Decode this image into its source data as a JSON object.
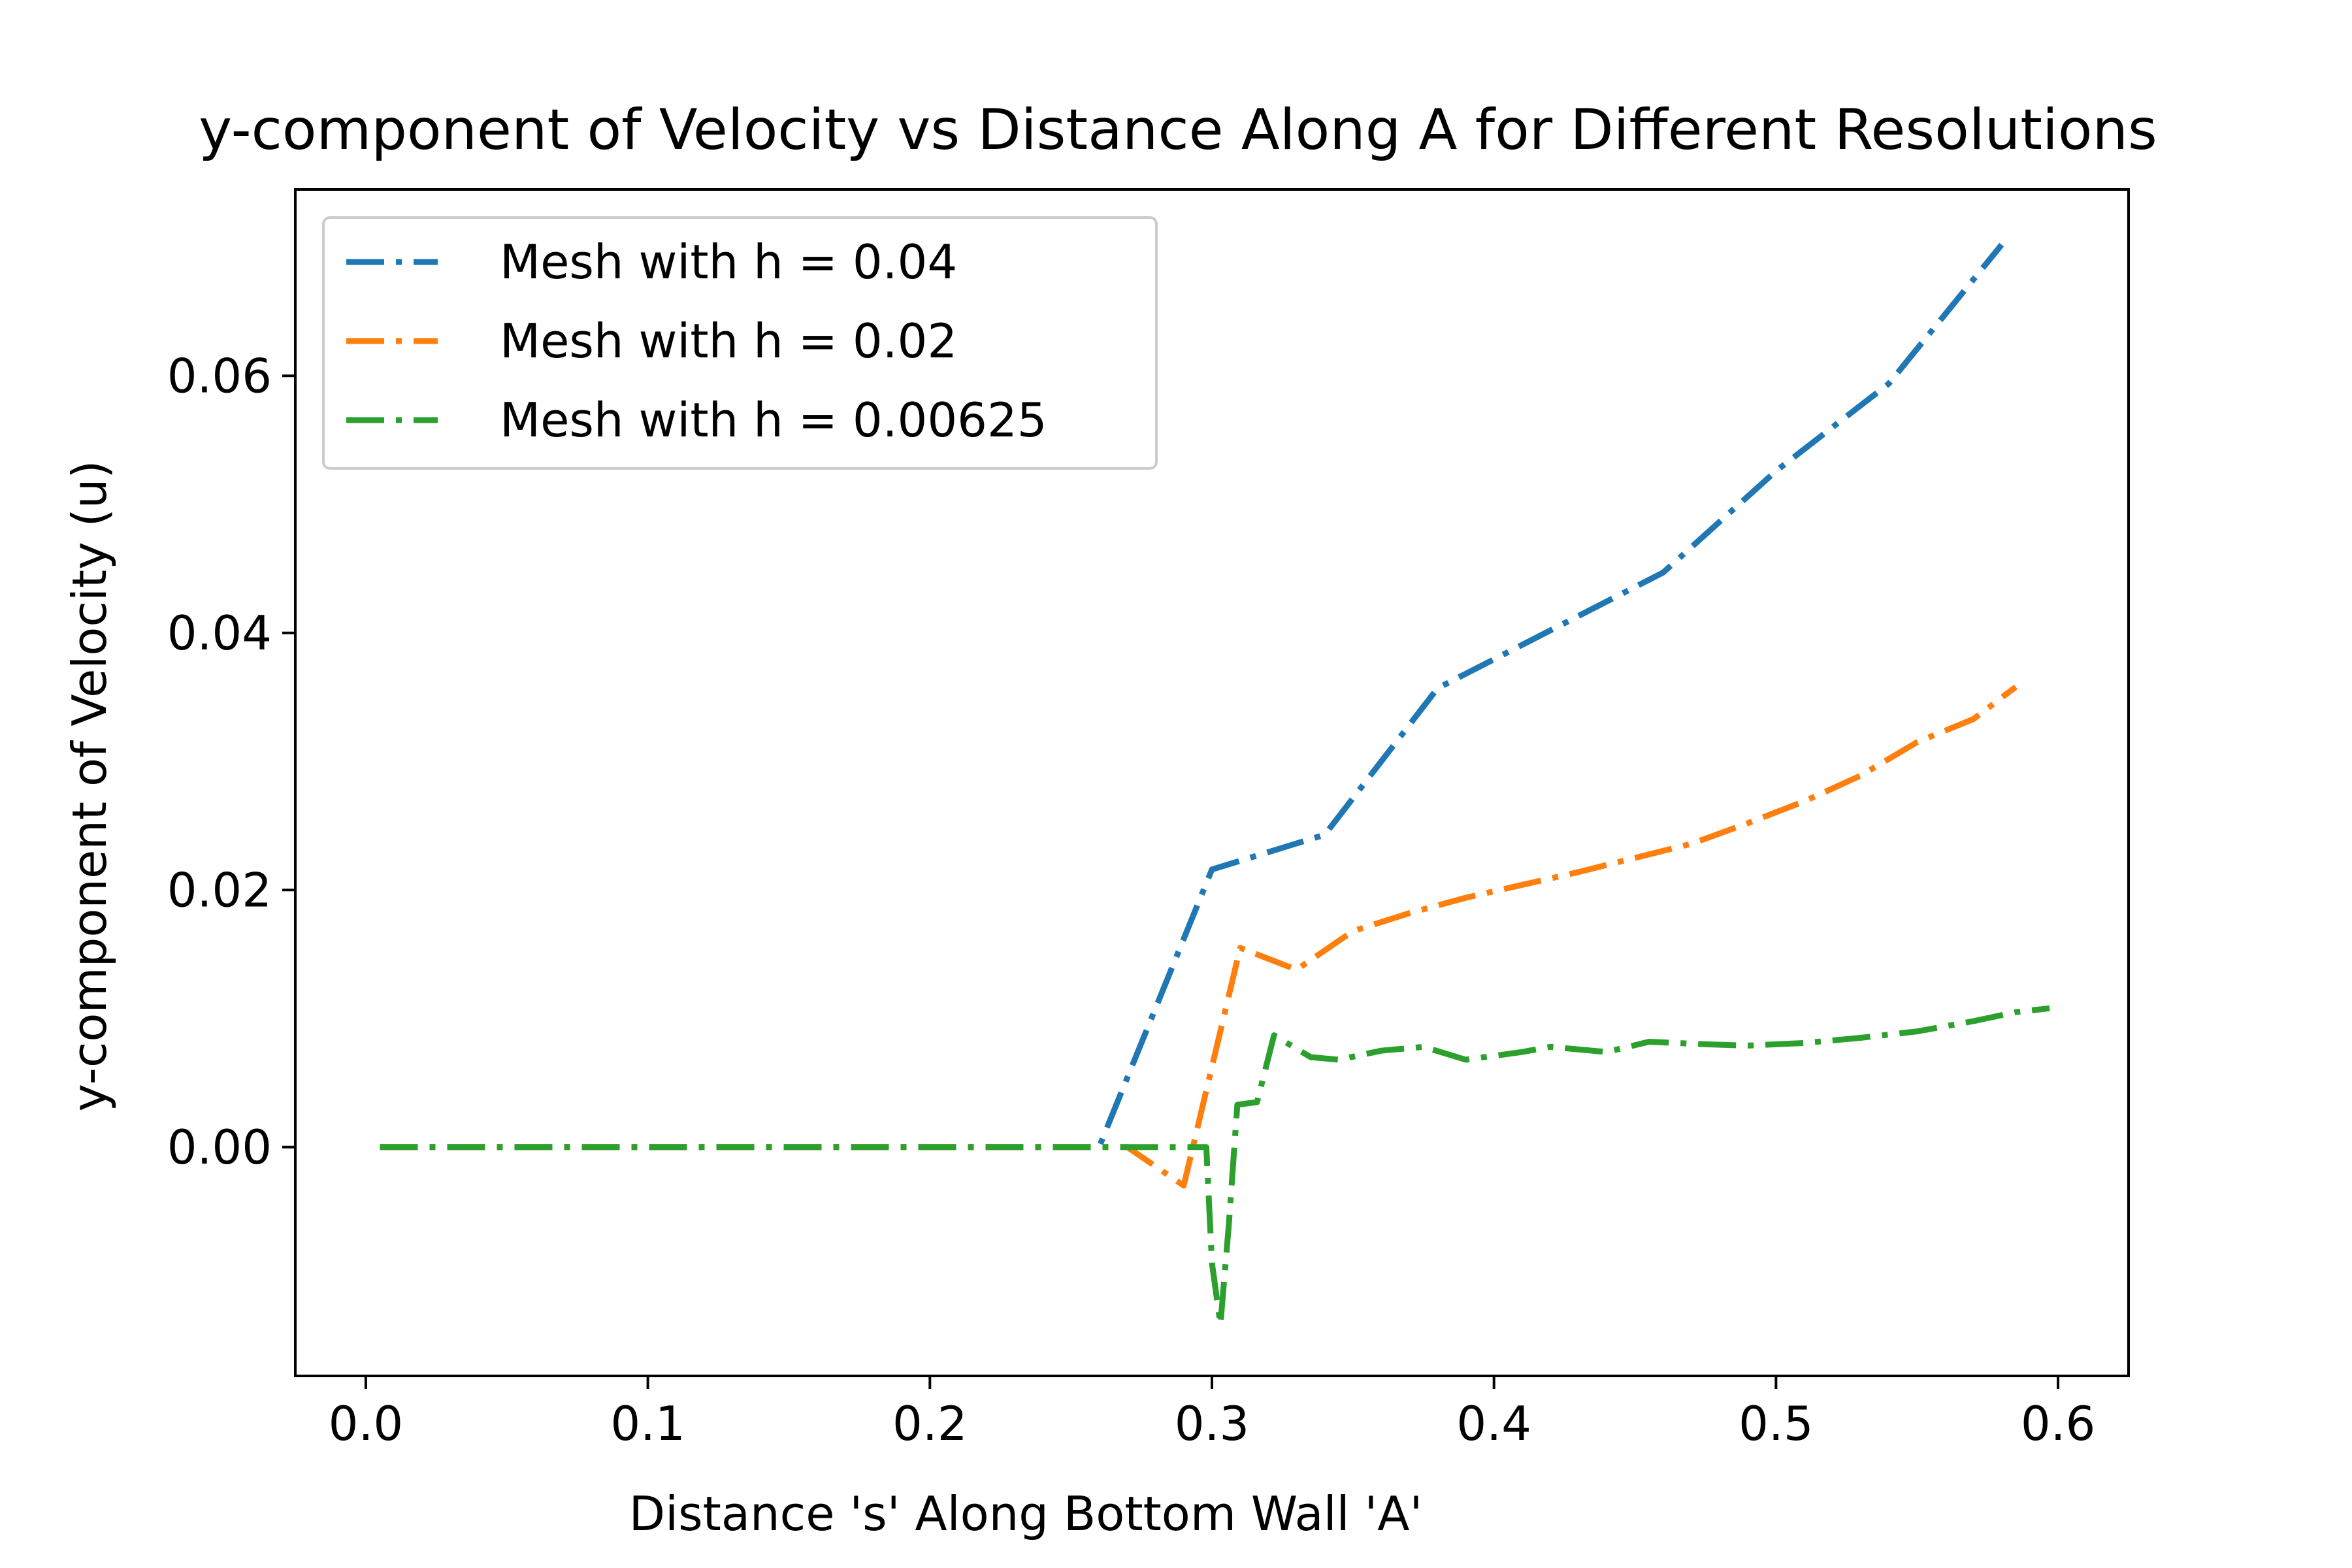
{
  "chart_data": {
    "type": "line",
    "title": "y-component of Velocity vs Distance Along A for Different Resolutions",
    "xlabel": "Distance 's' Along Bottom Wall 'A'",
    "ylabel": "y-component of Velocity (u)",
    "xlim": [
      -0.025,
      0.625
    ],
    "ylim": [
      -0.0178,
      0.0745
    ],
    "x_ticks": [
      0.0,
      0.1,
      0.2,
      0.3,
      0.4,
      0.5,
      0.6
    ],
    "x_tick_labels": [
      "0.0",
      "0.1",
      "0.2",
      "0.3",
      "0.4",
      "0.5",
      "0.6"
    ],
    "y_ticks": [
      0.0,
      0.02,
      0.04,
      0.06
    ],
    "y_tick_labels": [
      "0.00",
      "0.02",
      "0.04",
      "0.06"
    ],
    "grid": false,
    "legend_position": "upper-left",
    "series": [
      {
        "name": "Mesh with h = 0.04",
        "color": "#1f77b4",
        "style": "dashdot",
        "points": [
          [
            0.005,
            0.0
          ],
          [
            0.26,
            0.0
          ],
          [
            0.3,
            0.0216
          ],
          [
            0.34,
            0.0243
          ],
          [
            0.38,
            0.0357
          ],
          [
            0.42,
            0.0402
          ],
          [
            0.46,
            0.0447
          ],
          [
            0.5,
            0.0526
          ],
          [
            0.54,
            0.0594
          ],
          [
            0.58,
            0.0702
          ]
        ]
      },
      {
        "name": "Mesh with h = 0.02",
        "color": "#ff7f0e",
        "style": "dashdot",
        "points": [
          [
            0.005,
            0.0
          ],
          [
            0.27,
            0.0
          ],
          [
            0.29,
            -0.003
          ],
          [
            0.31,
            0.0155
          ],
          [
            0.33,
            0.0138
          ],
          [
            0.35,
            0.0168
          ],
          [
            0.37,
            0.0182
          ],
          [
            0.39,
            0.0194
          ],
          [
            0.41,
            0.0204
          ],
          [
            0.43,
            0.0214
          ],
          [
            0.45,
            0.0225
          ],
          [
            0.47,
            0.0236
          ],
          [
            0.49,
            0.0252
          ],
          [
            0.51,
            0.0269
          ],
          [
            0.53,
            0.0289
          ],
          [
            0.55,
            0.0315
          ],
          [
            0.57,
            0.0333
          ],
          [
            0.585,
            0.0358
          ]
        ]
      },
      {
        "name": "Mesh with h = 0.00625",
        "color": "#2ca02c",
        "style": "dashdot",
        "points": [
          [
            0.005,
            0.0
          ],
          [
            0.298,
            0.0
          ],
          [
            0.3,
            -0.009
          ],
          [
            0.303,
            -0.0138
          ],
          [
            0.306,
            -0.006
          ],
          [
            0.309,
            0.0033
          ],
          [
            0.316,
            0.0035
          ],
          [
            0.322,
            0.0087
          ],
          [
            0.335,
            0.007
          ],
          [
            0.345,
            0.0068
          ],
          [
            0.36,
            0.0075
          ],
          [
            0.375,
            0.0078
          ],
          [
            0.39,
            0.0068
          ],
          [
            0.41,
            0.0074
          ],
          [
            0.42,
            0.0078
          ],
          [
            0.44,
            0.0074
          ],
          [
            0.455,
            0.0082
          ],
          [
            0.475,
            0.008
          ],
          [
            0.49,
            0.0079
          ],
          [
            0.51,
            0.0081
          ],
          [
            0.53,
            0.0085
          ],
          [
            0.55,
            0.009
          ],
          [
            0.57,
            0.0098
          ],
          [
            0.585,
            0.0105
          ],
          [
            0.597,
            0.0108
          ]
        ]
      }
    ]
  }
}
